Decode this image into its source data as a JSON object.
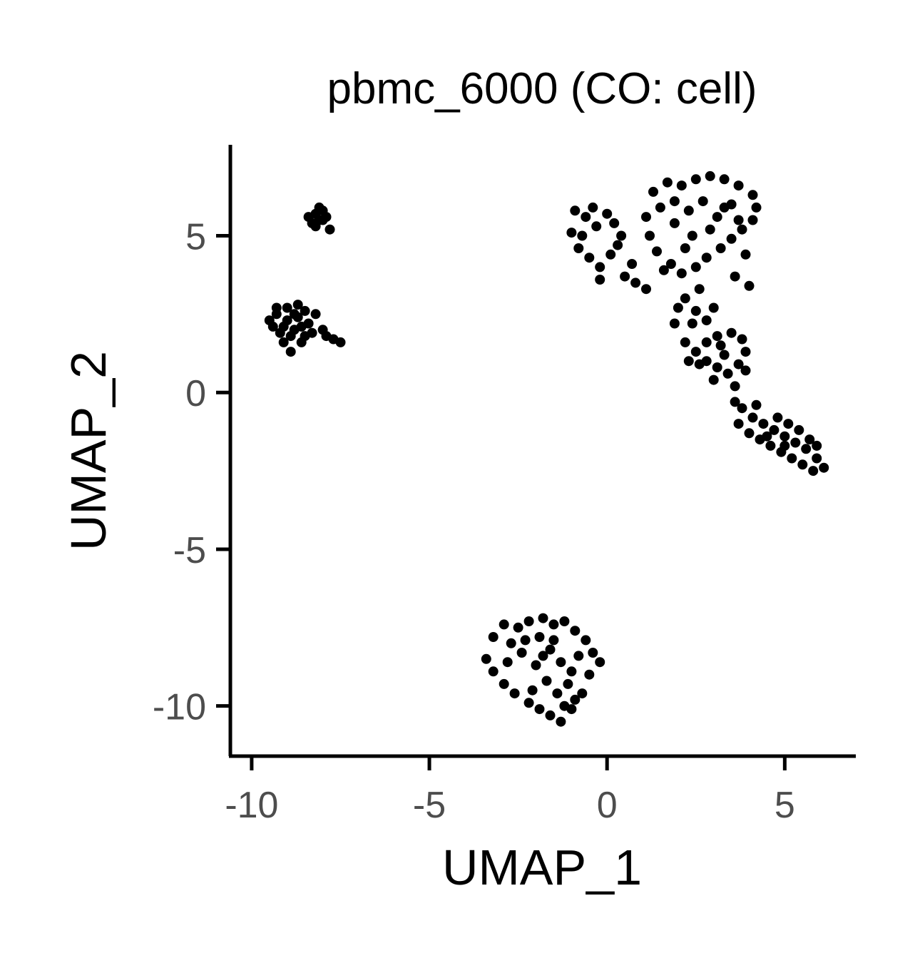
{
  "chart_data": {
    "type": "scatter",
    "title": "pbmc_6000 (CO: cell)",
    "xlabel": "UMAP_1",
    "ylabel": "UMAP_2",
    "xlim": [
      -10.6,
      7
    ],
    "ylim": [
      -11.6,
      7.9
    ],
    "xticks": [
      -10,
      -5,
      0,
      5
    ],
    "xtick_labels": [
      "-10",
      "-5",
      "0",
      "5"
    ],
    "yticks": [
      -10,
      -5,
      0,
      5
    ],
    "ytick_labels": [
      "-10",
      "-5",
      "0",
      "5"
    ],
    "grid": false,
    "legend": "none",
    "point_color": "#000000",
    "points": [
      [
        -8.2,
        5.7
      ],
      [
        -8.0,
        5.5
      ],
      [
        -8.3,
        5.4
      ],
      [
        -8.1,
        5.9
      ],
      [
        -7.9,
        5.6
      ],
      [
        -8.4,
        5.6
      ],
      [
        -8.0,
        5.8
      ],
      [
        -8.2,
        5.3
      ],
      [
        -7.8,
        5.2
      ],
      [
        -8.1,
        5.5
      ],
      [
        -9.5,
        2.3
      ],
      [
        -9.3,
        2.5
      ],
      [
        -9.1,
        2.1
      ],
      [
        -8.9,
        1.8
      ],
      [
        -8.7,
        2.4
      ],
      [
        -8.5,
        2.6
      ],
      [
        -8.8,
        2.0
      ],
      [
        -9.0,
        2.7
      ],
      [
        -9.2,
        1.9
      ],
      [
        -8.6,
        1.6
      ],
      [
        -8.9,
        1.3
      ],
      [
        -8.4,
        2.2
      ],
      [
        -8.3,
        1.9
      ],
      [
        -9.4,
        2.1
      ],
      [
        -9.0,
        2.3
      ],
      [
        -8.7,
        2.8
      ],
      [
        -8.5,
        1.8
      ],
      [
        -9.1,
        1.6
      ],
      [
        -8.8,
        2.5
      ],
      [
        -8.2,
        2.5
      ],
      [
        -7.9,
        1.8
      ],
      [
        -7.7,
        1.7
      ],
      [
        -7.5,
        1.6
      ],
      [
        -8.0,
        2.0
      ],
      [
        -9.3,
        2.7
      ],
      [
        -8.6,
        2.1
      ],
      [
        -1.8,
        -7.2
      ],
      [
        -1.5,
        -7.4
      ],
      [
        -1.2,
        -7.3
      ],
      [
        -0.9,
        -7.6
      ],
      [
        -0.6,
        -7.9
      ],
      [
        -0.4,
        -8.3
      ],
      [
        -0.2,
        -8.6
      ],
      [
        -0.5,
        -9.0
      ],
      [
        -0.7,
        -9.6
      ],
      [
        -1.0,
        -10.1
      ],
      [
        -1.3,
        -10.5
      ],
      [
        -1.6,
        -10.3
      ],
      [
        -1.9,
        -10.1
      ],
      [
        -2.2,
        -9.9
      ],
      [
        -2.6,
        -9.6
      ],
      [
        -2.9,
        -9.3
      ],
      [
        -3.2,
        -8.9
      ],
      [
        -3.4,
        -8.5
      ],
      [
        -3.2,
        -7.8
      ],
      [
        -2.9,
        -7.4
      ],
      [
        -2.5,
        -7.5
      ],
      [
        -2.2,
        -7.3
      ],
      [
        -1.9,
        -7.8
      ],
      [
        -1.6,
        -8.2
      ],
      [
        -1.3,
        -8.6
      ],
      [
        -1.0,
        -8.9
      ],
      [
        -1.7,
        -9.2
      ],
      [
        -2.0,
        -8.7
      ],
      [
        -2.4,
        -8.3
      ],
      [
        -2.7,
        -8.0
      ],
      [
        -1.4,
        -9.6
      ],
      [
        -1.1,
        -9.3
      ],
      [
        -0.8,
        -8.4
      ],
      [
        -2.1,
        -9.5
      ],
      [
        -1.5,
        -7.9
      ],
      [
        -2.8,
        -8.6
      ],
      [
        -1.2,
        -10.0
      ],
      [
        -0.9,
        -9.8
      ],
      [
        -2.3,
        -7.9
      ],
      [
        -1.8,
        -8.4
      ],
      [
        -0.9,
        5.8
      ],
      [
        -0.6,
        5.6
      ],
      [
        -0.3,
        5.3
      ],
      [
        -0.7,
        5.0
      ],
      [
        -1.0,
        5.1
      ],
      [
        -0.8,
        4.6
      ],
      [
        -0.5,
        4.3
      ],
      [
        -0.2,
        4.0
      ],
      [
        0.1,
        4.4
      ],
      [
        0.3,
        4.7
      ],
      [
        0.4,
        5.0
      ],
      [
        0.2,
        5.4
      ],
      [
        -0.4,
        5.9
      ],
      [
        0.5,
        3.7
      ],
      [
        0.8,
        3.5
      ],
      [
        1.1,
        3.3
      ],
      [
        0.7,
        4.1
      ],
      [
        -0.2,
        3.6
      ],
      [
        0.0,
        5.7
      ],
      [
        1.3,
        6.4
      ],
      [
        1.7,
        6.7
      ],
      [
        2.1,
        6.6
      ],
      [
        2.5,
        6.8
      ],
      [
        2.9,
        6.9
      ],
      [
        3.3,
        6.8
      ],
      [
        3.7,
        6.6
      ],
      [
        4.1,
        6.3
      ],
      [
        4.2,
        5.9
      ],
      [
        4.1,
        5.5
      ],
      [
        3.8,
        5.2
      ],
      [
        3.5,
        4.9
      ],
      [
        3.2,
        4.6
      ],
      [
        2.8,
        4.3
      ],
      [
        2.5,
        4.0
      ],
      [
        2.1,
        3.8
      ],
      [
        1.8,
        4.1
      ],
      [
        1.4,
        4.5
      ],
      [
        1.2,
        5.0
      ],
      [
        1.1,
        5.6
      ],
      [
        1.5,
        5.9
      ],
      [
        1.9,
        5.4
      ],
      [
        2.3,
        5.8
      ],
      [
        2.7,
        6.1
      ],
      [
        3.1,
        5.6
      ],
      [
        3.5,
        6.0
      ],
      [
        2.4,
        5.0
      ],
      [
        2.9,
        5.2
      ],
      [
        3.7,
        5.5
      ],
      [
        1.9,
        6.1
      ],
      [
        2.2,
        4.6
      ],
      [
        3.3,
        5.9
      ],
      [
        3.9,
        4.4
      ],
      [
        4.0,
        3.4
      ],
      [
        3.6,
        3.7
      ],
      [
        1.6,
        3.9
      ],
      [
        2.2,
        3.0
      ],
      [
        2.5,
        2.6
      ],
      [
        2.8,
        2.3
      ],
      [
        2.0,
        2.7
      ],
      [
        2.4,
        2.2
      ],
      [
        3.0,
        2.7
      ],
      [
        1.9,
        2.2
      ],
      [
        2.6,
        3.3
      ],
      [
        2.2,
        1.6
      ],
      [
        2.5,
        1.3
      ],
      [
        2.8,
        1.0
      ],
      [
        3.1,
        0.8
      ],
      [
        3.4,
        0.6
      ],
      [
        3.7,
        0.9
      ],
      [
        3.9,
        1.3
      ],
      [
        3.8,
        1.7
      ],
      [
        3.5,
        1.9
      ],
      [
        3.1,
        1.8
      ],
      [
        2.8,
        1.6
      ],
      [
        3.3,
        1.2
      ],
      [
        2.6,
        0.9
      ],
      [
        3.0,
        0.4
      ],
      [
        3.6,
        0.2
      ],
      [
        2.3,
        1.0
      ],
      [
        3.9,
        0.7
      ],
      [
        3.2,
        1.5
      ],
      [
        3.8,
        -0.5
      ],
      [
        4.1,
        -0.8
      ],
      [
        4.4,
        -1.0
      ],
      [
        4.7,
        -1.2
      ],
      [
        5.0,
        -1.4
      ],
      [
        5.3,
        -1.6
      ],
      [
        5.6,
        -1.8
      ],
      [
        5.9,
        -2.1
      ],
      [
        6.1,
        -2.4
      ],
      [
        5.8,
        -2.5
      ],
      [
        5.5,
        -2.3
      ],
      [
        5.2,
        -2.1
      ],
      [
        4.9,
        -1.9
      ],
      [
        4.6,
        -1.7
      ],
      [
        4.3,
        -1.5
      ],
      [
        4.0,
        -1.3
      ],
      [
        3.7,
        -1.0
      ],
      [
        4.2,
        -0.4
      ],
      [
        4.8,
        -0.8
      ],
      [
        5.1,
        -1.0
      ],
      [
        5.4,
        -1.2
      ],
      [
        5.7,
        -1.5
      ],
      [
        4.5,
        -1.4
      ],
      [
        5.0,
        -1.7
      ],
      [
        3.6,
        -0.3
      ],
      [
        5.9,
        -1.7
      ]
    ]
  }
}
